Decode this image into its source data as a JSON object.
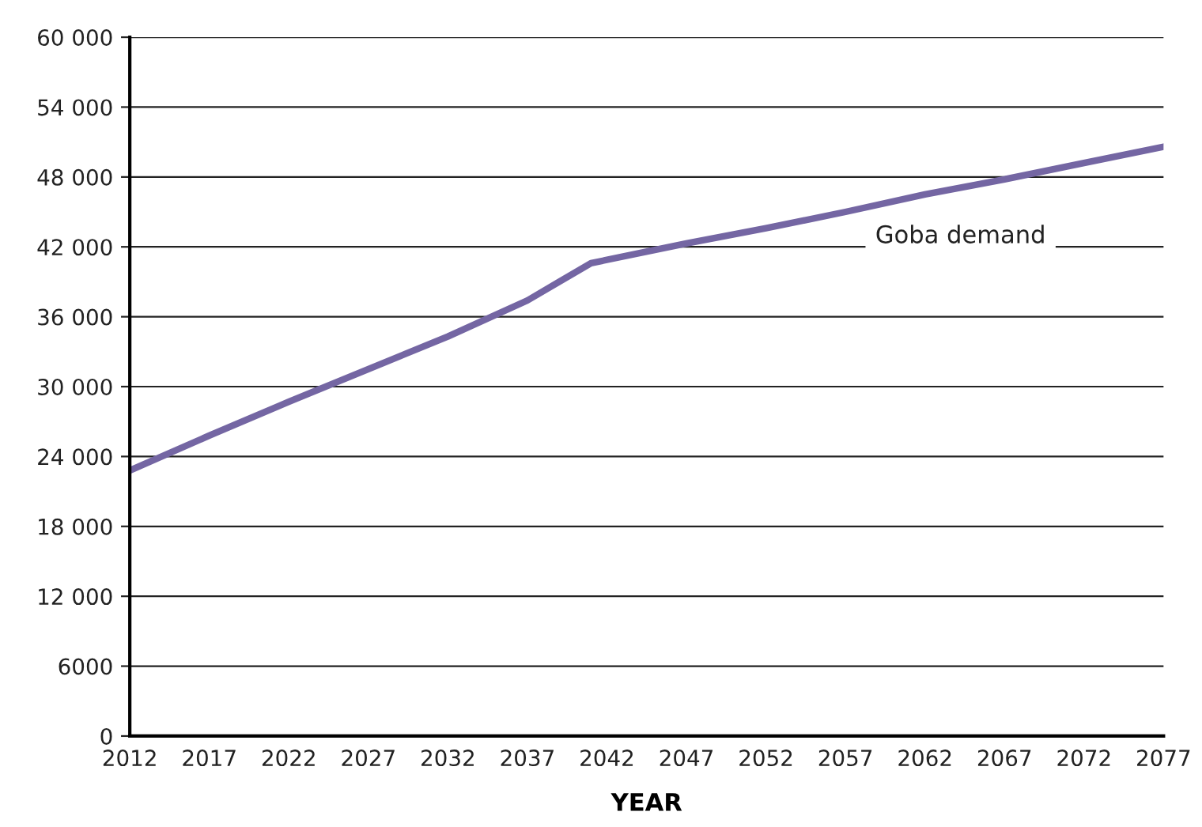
{
  "chart_data": {
    "type": "line",
    "xlabel": "YEAR",
    "x": [
      2012,
      2017,
      2022,
      2027,
      2032,
      2037,
      2039,
      2041,
      2047,
      2052,
      2057,
      2062,
      2067,
      2072,
      2077
    ],
    "series": [
      {
        "name": "Goba demand",
        "color": "#7466a3",
        "values": [
          22800,
          25800,
          28700,
          31500,
          34300,
          37400,
          39000,
          40600,
          42300,
          43600,
          45000,
          46500,
          47800,
          49200,
          50600
        ]
      }
    ],
    "xlim": [
      2012,
      2077
    ],
    "xticks": [
      2012,
      2017,
      2022,
      2027,
      2032,
      2037,
      2042,
      2047,
      2052,
      2057,
      2062,
      2067,
      2072,
      2077
    ],
    "ylim": [
      0,
      60000
    ],
    "yticks": [
      0,
      6000,
      {
        "value": 12000,
        "label": "12 000"
      },
      {
        "value": 18000,
        "label": "18 000"
      },
      {
        "value": 24000,
        "label": "24 000"
      },
      {
        "value": 30000,
        "label": "30 000"
      },
      {
        "value": 36000,
        "label": "36 000"
      },
      {
        "value": 42000,
        "label": "42 000"
      },
      {
        "value": 48000,
        "label": "48 000"
      },
      {
        "value": 54000,
        "label": "54 000"
      },
      {
        "value": 60000,
        "label": "60 000"
      }
    ],
    "grid": "y",
    "legend": false,
    "marker": "none",
    "line_style": "solid"
  }
}
